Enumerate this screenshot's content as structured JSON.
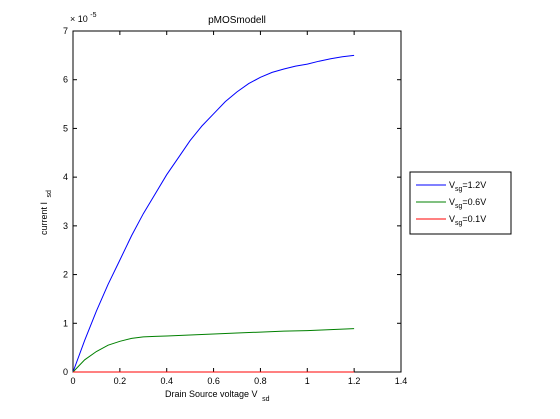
{
  "chart_data": {
    "type": "line",
    "title": "pMOSmodell",
    "xlabel": "Drain Source voltage V",
    "xlabel_sub": "sd",
    "ylabel": "current I",
    "ylabel_sub": "sd",
    "xlim": [
      0,
      1.4
    ],
    "ylim": [
      0,
      7
    ],
    "y_exponent": "-5",
    "y_multiplier_prefix": "× 10",
    "x_ticks": [
      "0",
      "0.2",
      "0.4",
      "0.6",
      "0.8",
      "1",
      "1.2",
      "1.4"
    ],
    "y_ticks": [
      "0",
      "1",
      "2",
      "3",
      "4",
      "5",
      "6",
      "7"
    ],
    "grid": false,
    "legend_position": "right",
    "series": [
      {
        "name_main": "V",
        "name_sub": "sg",
        "name_rest": "=1.2V",
        "color": "#0000ff",
        "x": [
          0,
          0.05,
          0.1,
          0.15,
          0.2,
          0.25,
          0.3,
          0.35,
          0.4,
          0.45,
          0.5,
          0.55,
          0.6,
          0.65,
          0.7,
          0.75,
          0.8,
          0.85,
          0.9,
          0.95,
          1.0,
          1.05,
          1.1,
          1.15,
          1.2
        ],
        "y": [
          0,
          0.65,
          1.25,
          1.8,
          2.3,
          2.8,
          3.25,
          3.65,
          4.05,
          4.4,
          4.75,
          5.05,
          5.3,
          5.55,
          5.75,
          5.92,
          6.05,
          6.15,
          6.22,
          6.28,
          6.32,
          6.38,
          6.43,
          6.47,
          6.5
        ]
      },
      {
        "name_main": "V",
        "name_sub": "sg",
        "name_rest": "=0.6V",
        "color": "#008000",
        "x": [
          0,
          0.05,
          0.1,
          0.15,
          0.2,
          0.25,
          0.3,
          0.35,
          0.4,
          0.5,
          0.6,
          0.7,
          0.8,
          0.9,
          1.0,
          1.1,
          1.2
        ],
        "y": [
          0,
          0.25,
          0.42,
          0.55,
          0.63,
          0.69,
          0.72,
          0.73,
          0.74,
          0.76,
          0.78,
          0.8,
          0.82,
          0.84,
          0.85,
          0.87,
          0.89
        ]
      },
      {
        "name_main": "V",
        "name_sub": "sg",
        "name_rest": "=0.1V",
        "color": "#ff0000",
        "x": [
          0,
          0.2,
          0.4,
          0.6,
          0.8,
          1.0,
          1.2
        ],
        "y": [
          0,
          0,
          0,
          0,
          0,
          0,
          0
        ]
      }
    ]
  }
}
